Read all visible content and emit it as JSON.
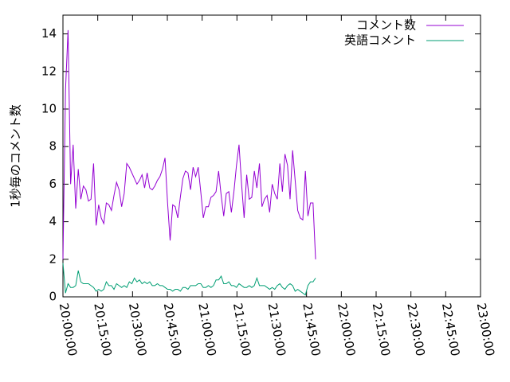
{
  "chart_data": {
    "type": "line",
    "title": "",
    "xlabel": "",
    "ylabel": "1秒毎のコメント数",
    "xlim": [
      "20:00:00",
      "23:00:00"
    ],
    "ylim": [
      0,
      15
    ],
    "y_ticks": [
      "0",
      "2",
      "4",
      "6",
      "8",
      "10",
      "12",
      "14"
    ],
    "x_ticks": [
      "20:00:00",
      "20:15:00",
      "20:30:00",
      "20:45:00",
      "21:00:00",
      "21:15:00",
      "21:30:00",
      "21:45:00",
      "22:00:00",
      "22:15:00",
      "22:30:00",
      "22:45:00",
      "23:00:00"
    ],
    "grid": false,
    "legend_position": "top-right",
    "series": [
      {
        "name": "コメント数",
        "color": "#9400d3",
        "points": [
          [
            "20:00:00",
            2.0
          ],
          [
            "20:01:06",
            11.0
          ],
          [
            "20:02:12",
            14.2
          ],
          [
            "20:03:18",
            6.0
          ],
          [
            "20:04:24",
            8.1
          ],
          [
            "20:05:30",
            4.7
          ],
          [
            "20:06:36",
            6.8
          ],
          [
            "20:07:42",
            5.2
          ],
          [
            "20:08:48",
            5.9
          ],
          [
            "20:09:54",
            5.7
          ],
          [
            "20:11:00",
            5.1
          ],
          [
            "20:12:06",
            5.2
          ],
          [
            "20:13:12",
            7.1
          ],
          [
            "20:14:18",
            3.8
          ],
          [
            "20:15:24",
            4.9
          ],
          [
            "20:16:30",
            4.2
          ],
          [
            "20:17:36",
            3.9
          ],
          [
            "20:18:42",
            5.0
          ],
          [
            "20:19:48",
            4.9
          ],
          [
            "20:20:54",
            4.6
          ],
          [
            "20:22:00",
            5.4
          ],
          [
            "20:23:06",
            6.1
          ],
          [
            "20:24:12",
            5.7
          ],
          [
            "20:25:18",
            4.8
          ],
          [
            "20:26:24",
            5.5
          ],
          [
            "20:27:30",
            7.1
          ],
          [
            "20:28:36",
            6.9
          ],
          [
            "20:29:42",
            6.6
          ],
          [
            "20:30:48",
            6.3
          ],
          [
            "20:31:54",
            6.0
          ],
          [
            "20:33:00",
            6.2
          ],
          [
            "20:34:06",
            6.5
          ],
          [
            "20:35:12",
            5.8
          ],
          [
            "20:36:18",
            6.6
          ],
          [
            "20:37:24",
            5.8
          ],
          [
            "20:38:30",
            5.7
          ],
          [
            "20:39:36",
            5.9
          ],
          [
            "20:40:42",
            6.2
          ],
          [
            "20:41:48",
            6.4
          ],
          [
            "20:42:54",
            6.8
          ],
          [
            "20:44:00",
            7.4
          ],
          [
            "20:45:06",
            5.0
          ],
          [
            "20:46:12",
            3.0
          ],
          [
            "20:47:18",
            4.9
          ],
          [
            "20:48:24",
            4.8
          ],
          [
            "20:49:30",
            4.2
          ],
          [
            "20:50:36",
            5.3
          ],
          [
            "20:51:42",
            6.3
          ],
          [
            "20:52:48",
            6.7
          ],
          [
            "20:53:54",
            6.6
          ],
          [
            "20:55:00",
            5.7
          ],
          [
            "20:56:06",
            6.9
          ],
          [
            "20:57:12",
            6.4
          ],
          [
            "20:58:18",
            6.9
          ],
          [
            "20:59:24",
            5.6
          ],
          [
            "21:00:30",
            4.2
          ],
          [
            "21:01:36",
            4.8
          ],
          [
            "21:02:42",
            4.8
          ],
          [
            "21:03:48",
            5.3
          ],
          [
            "21:04:54",
            5.4
          ],
          [
            "21:06:00",
            5.6
          ],
          [
            "21:07:06",
            6.7
          ],
          [
            "21:08:12",
            5.4
          ],
          [
            "21:09:18",
            4.3
          ],
          [
            "21:10:24",
            5.5
          ],
          [
            "21:11:30",
            5.6
          ],
          [
            "21:12:36",
            4.5
          ],
          [
            "21:13:42",
            5.6
          ],
          [
            "21:14:48",
            7.0
          ],
          [
            "21:15:54",
            8.1
          ],
          [
            "21:17:00",
            6.0
          ],
          [
            "21:18:06",
            4.2
          ],
          [
            "21:19:12",
            6.5
          ],
          [
            "21:20:18",
            5.2
          ],
          [
            "21:21:24",
            5.3
          ],
          [
            "21:22:30",
            6.7
          ],
          [
            "21:23:36",
            5.8
          ],
          [
            "21:24:42",
            7.1
          ],
          [
            "21:25:48",
            4.8
          ],
          [
            "21:26:54",
            5.2
          ],
          [
            "21:28:00",
            5.4
          ],
          [
            "21:29:06",
            4.5
          ],
          [
            "21:30:12",
            6.0
          ],
          [
            "21:31:18",
            5.5
          ],
          [
            "21:32:24",
            5.2
          ],
          [
            "21:33:30",
            7.1
          ],
          [
            "21:34:36",
            5.6
          ],
          [
            "21:35:42",
            7.6
          ],
          [
            "21:36:48",
            7.0
          ],
          [
            "21:37:54",
            5.2
          ],
          [
            "21:39:00",
            7.8
          ],
          [
            "21:40:06",
            6.2
          ],
          [
            "21:41:12",
            4.6
          ],
          [
            "21:42:18",
            4.2
          ],
          [
            "21:43:24",
            4.1
          ],
          [
            "21:44:30",
            6.7
          ],
          [
            "21:45:36",
            4.3
          ],
          [
            "21:46:42",
            5.0
          ],
          [
            "21:47:48",
            5.0
          ],
          [
            "21:48:54",
            2.0
          ]
        ]
      },
      {
        "name": "英語コメント",
        "color": "#009e73",
        "points": [
          [
            "20:00:00",
            1.8
          ],
          [
            "20:01:06",
            0.2
          ],
          [
            "20:02:12",
            0.7
          ],
          [
            "20:03:18",
            0.5
          ],
          [
            "20:04:24",
            0.5
          ],
          [
            "20:05:30",
            0.6
          ],
          [
            "20:06:36",
            1.4
          ],
          [
            "20:07:42",
            0.8
          ],
          [
            "20:08:48",
            0.7
          ],
          [
            "20:09:54",
            0.7
          ],
          [
            "20:11:00",
            0.7
          ],
          [
            "20:12:06",
            0.6
          ],
          [
            "20:13:12",
            0.5
          ],
          [
            "20:14:18",
            0.3
          ],
          [
            "20:15:24",
            0.4
          ],
          [
            "20:16:30",
            0.3
          ],
          [
            "20:17:36",
            0.4
          ],
          [
            "20:18:42",
            0.8
          ],
          [
            "20:19:48",
            0.6
          ],
          [
            "20:20:54",
            0.6
          ],
          [
            "20:22:00",
            0.4
          ],
          [
            "20:23:06",
            0.7
          ],
          [
            "20:24:12",
            0.6
          ],
          [
            "20:25:18",
            0.5
          ],
          [
            "20:26:24",
            0.6
          ],
          [
            "20:27:30",
            0.5
          ],
          [
            "20:28:36",
            0.8
          ],
          [
            "20:29:42",
            0.7
          ],
          [
            "20:30:48",
            1.0
          ],
          [
            "20:31:54",
            0.8
          ],
          [
            "20:33:00",
            0.9
          ],
          [
            "20:34:06",
            0.7
          ],
          [
            "20:35:12",
            0.8
          ],
          [
            "20:36:18",
            0.7
          ],
          [
            "20:37:24",
            0.8
          ],
          [
            "20:38:30",
            0.6
          ],
          [
            "20:39:36",
            0.6
          ],
          [
            "20:40:42",
            0.7
          ],
          [
            "20:41:48",
            0.6
          ],
          [
            "20:42:54",
            0.6
          ],
          [
            "20:44:00",
            0.5
          ],
          [
            "20:45:06",
            0.4
          ],
          [
            "20:46:12",
            0.4
          ],
          [
            "20:47:18",
            0.3
          ],
          [
            "20:48:24",
            0.4
          ],
          [
            "20:49:30",
            0.4
          ],
          [
            "20:50:36",
            0.3
          ],
          [
            "20:51:42",
            0.5
          ],
          [
            "20:52:48",
            0.5
          ],
          [
            "20:53:54",
            0.4
          ],
          [
            "20:55:00",
            0.6
          ],
          [
            "20:56:06",
            0.6
          ],
          [
            "20:57:12",
            0.6
          ],
          [
            "20:58:18",
            0.7
          ],
          [
            "20:59:24",
            0.7
          ],
          [
            "21:00:30",
            0.5
          ],
          [
            "21:01:36",
            0.5
          ],
          [
            "21:02:42",
            0.6
          ],
          [
            "21:03:48",
            0.5
          ],
          [
            "21:04:54",
            0.6
          ],
          [
            "21:06:00",
            0.9
          ],
          [
            "21:07:06",
            0.9
          ],
          [
            "21:08:12",
            1.1
          ],
          [
            "21:09:18",
            0.7
          ],
          [
            "21:10:24",
            0.7
          ],
          [
            "21:11:30",
            0.8
          ],
          [
            "21:12:36",
            0.6
          ],
          [
            "21:13:42",
            0.6
          ],
          [
            "21:14:48",
            0.5
          ],
          [
            "21:15:54",
            0.7
          ],
          [
            "21:17:00",
            0.6
          ],
          [
            "21:18:06",
            0.5
          ],
          [
            "21:19:12",
            0.5
          ],
          [
            "21:20:18",
            0.6
          ],
          [
            "21:21:24",
            0.5
          ],
          [
            "21:22:30",
            0.6
          ],
          [
            "21:23:36",
            1.0
          ],
          [
            "21:24:42",
            0.6
          ],
          [
            "21:25:48",
            0.6
          ],
          [
            "21:26:54",
            0.6
          ],
          [
            "21:28:00",
            0.5
          ],
          [
            "21:29:06",
            0.4
          ],
          [
            "21:30:12",
            0.5
          ],
          [
            "21:31:18",
            0.4
          ],
          [
            "21:32:24",
            0.6
          ],
          [
            "21:33:30",
            0.7
          ],
          [
            "21:34:36",
            0.5
          ],
          [
            "21:35:42",
            0.4
          ],
          [
            "21:36:48",
            0.6
          ],
          [
            "21:37:54",
            0.7
          ],
          [
            "21:39:00",
            0.6
          ],
          [
            "21:40:06",
            0.3
          ],
          [
            "21:41:12",
            0.4
          ],
          [
            "21:42:18",
            0.3
          ],
          [
            "21:43:24",
            0.2
          ],
          [
            "21:44:30",
            0.1
          ],
          [
            "21:45:36",
            0.6
          ],
          [
            "21:46:42",
            0.8
          ],
          [
            "21:47:48",
            0.8
          ],
          [
            "21:48:54",
            1.0
          ]
        ]
      }
    ]
  }
}
